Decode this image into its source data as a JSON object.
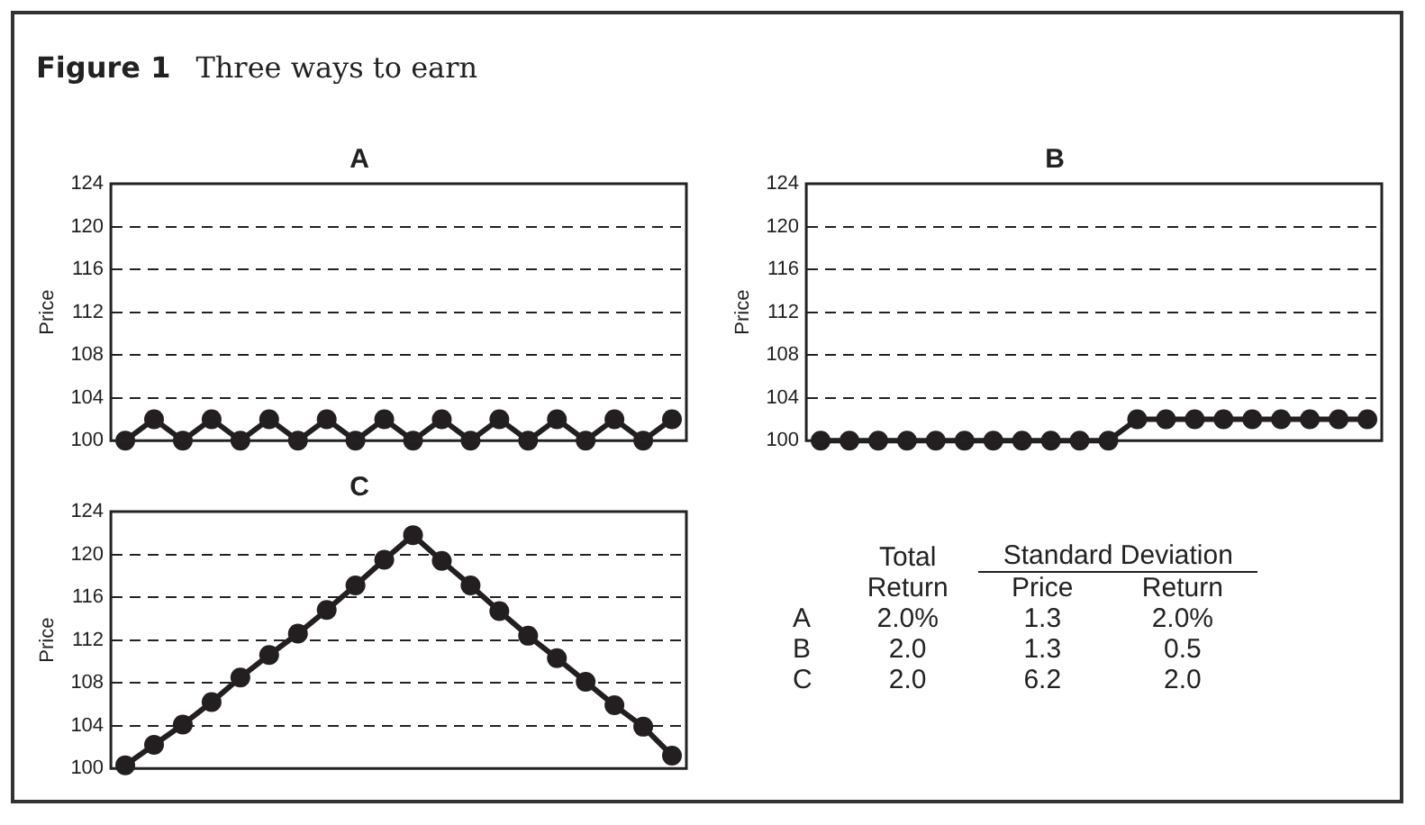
{
  "chart_data": [
    {
      "type": "line",
      "title": "A",
      "ylabel": "Price",
      "annotations": [
        "Figure 1",
        "Three ways to earn"
      ],
      "categories": [
        null,
        null,
        null,
        null,
        null,
        null,
        null,
        null,
        null,
        null,
        null,
        null,
        null,
        null,
        null,
        null,
        null,
        null,
        null,
        null
      ],
      "values": [
        100,
        102,
        100,
        102,
        100,
        102,
        100,
        102,
        100,
        102,
        100,
        102,
        100,
        102,
        100,
        102,
        100,
        102,
        100,
        102
      ],
      "color": "#231f20",
      "ylim": [
        100,
        124
      ],
      "yticks": [
        100,
        104,
        108,
        112,
        116,
        120,
        124
      ],
      "grid": "y",
      "marker": "circle",
      "legend": false
    },
    {
      "type": "line",
      "title": "B",
      "ylabel": "Price",
      "categories": [
        null,
        null,
        null,
        null,
        null,
        null,
        null,
        null,
        null,
        null,
        null,
        null,
        null,
        null,
        null,
        null,
        null,
        null,
        null,
        null
      ],
      "values": [
        100,
        100,
        100,
        100,
        100,
        100,
        100,
        100,
        100,
        100,
        100,
        102,
        102,
        102,
        102,
        102,
        102,
        102,
        102,
        102
      ],
      "color": "#231f20",
      "ylim": [
        100,
        124
      ],
      "yticks": [
        100,
        104,
        108,
        112,
        116,
        120,
        124
      ],
      "grid": "y",
      "marker": "circle",
      "legend": false
    },
    {
      "type": "line",
      "title": "C",
      "ylabel": "Price",
      "categories": [
        null,
        null,
        null,
        null,
        null,
        null,
        null,
        null,
        null,
        null,
        null,
        null,
        null,
        null,
        null,
        null,
        null,
        null,
        null,
        null
      ],
      "values": [
        100.3,
        102.2,
        104.1,
        106.2,
        108.5,
        110.6,
        112.6,
        114.8,
        117.1,
        119.5,
        121.8,
        119.4,
        117.1,
        114.7,
        112.4,
        110.3,
        108.1,
        105.9,
        103.9,
        101.2
      ],
      "color": "#231f20",
      "ylim": [
        100,
        124
      ],
      "yticks": [
        100,
        104,
        108,
        112,
        116,
        120,
        124
      ],
      "grid": "y",
      "marker": "circle",
      "legend": false
    },
    {
      "type": "other",
      "annotations": [
        "Total Return",
        "Standard Deviation",
        "Price",
        "Return",
        "A",
        "2.0%",
        "1.3",
        "2.0%",
        "B",
        "2.0",
        "1.3",
        "0.5",
        "C",
        "2.0",
        "6.2",
        "2.0"
      ]
    }
  ]
}
